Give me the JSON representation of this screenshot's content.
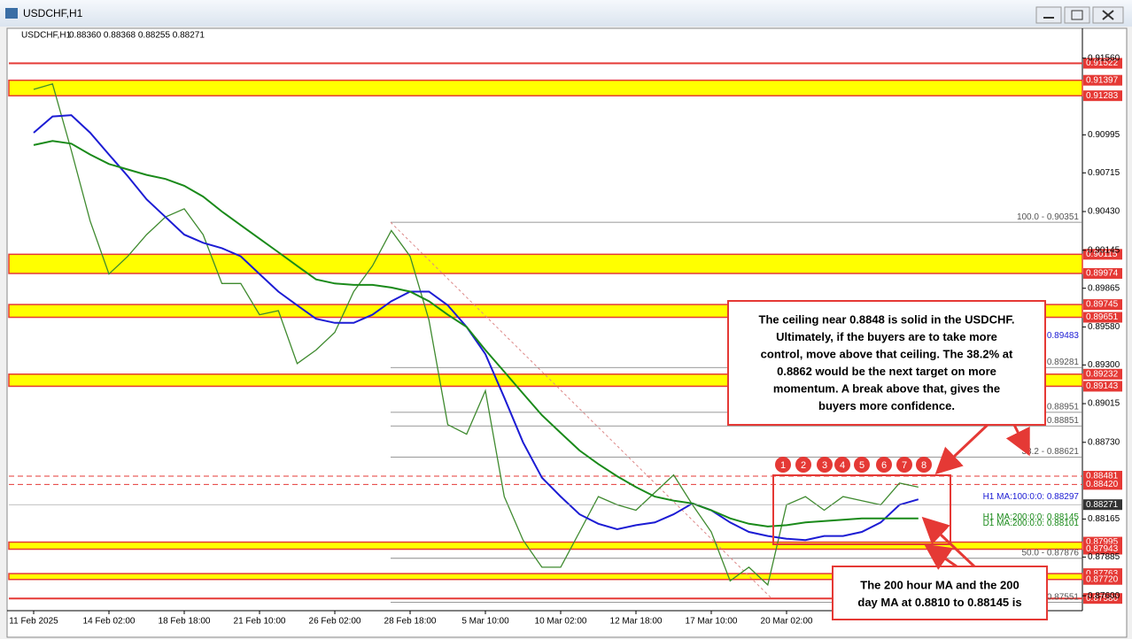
{
  "window_title": "USDCHF,H1",
  "chart_data": {
    "type": "line",
    "title": "USDCHF,H1",
    "subtitle": "0.88360 0.88368 0.88255 0.88271",
    "categories": [
      "11 Feb 2025",
      null,
      null,
      null,
      "14 Feb 02:00",
      null,
      null,
      null,
      "18 Feb 18:00",
      null,
      null,
      null,
      "21 Feb 10:00",
      null,
      null,
      null,
      "26 Feb 02:00",
      null,
      null,
      null,
      "28 Feb 18:00",
      null,
      null,
      null,
      "5 Mar 10:00",
      null,
      null,
      null,
      "10 Mar 02:00",
      null,
      null,
      null,
      "12 Mar 18:00",
      null,
      null,
      null,
      "17 Mar 10:00",
      null,
      null,
      null,
      "20 Mar 02:00",
      null,
      null,
      null,
      null,
      null,
      null,
      null
    ],
    "series": [
      {
        "name": "USDCHF",
        "color": "#3f8a2f",
        "values": [
          0.9133,
          0.9137,
          0.9088,
          0.9036,
          0.8997,
          0.901,
          0.9026,
          0.9039,
          0.9045,
          0.9026,
          0.899,
          0.899,
          0.8967,
          0.897,
          0.8931,
          0.8941,
          0.8954,
          0.8984,
          0.9003,
          0.9029,
          0.901,
          0.8963,
          0.8886,
          0.8879,
          0.8911,
          0.8833,
          0.8801,
          0.8781,
          0.8781,
          0.8807,
          0.8833,
          0.8827,
          0.8823,
          0.8836,
          0.8849,
          0.8827,
          0.8807,
          0.8771,
          0.8781,
          0.8768,
          0.8827,
          0.8833,
          0.8823,
          0.8833,
          0.883,
          0.8827,
          0.8843,
          0.884
        ]
      },
      {
        "name": "H1 MA:100:0:0:",
        "color": "#1c1cd4",
        "values": [
          0.9101,
          0.9113,
          0.9114,
          0.9101,
          0.9085,
          0.9069,
          0.9052,
          0.9039,
          0.9026,
          0.902,
          0.9016,
          0.901,
          0.8997,
          0.8984,
          0.8974,
          0.8964,
          0.8961,
          0.8961,
          0.8967,
          0.8977,
          0.8984,
          0.8984,
          0.8974,
          0.8958,
          0.8938,
          0.8906,
          0.8873,
          0.8847,
          0.8833,
          0.882,
          0.8813,
          0.8809,
          0.8812,
          0.8814,
          0.882,
          0.8828,
          0.8823,
          0.8814,
          0.8807,
          0.8804,
          0.8802,
          0.8801,
          0.8804,
          0.8804,
          0.8807,
          0.8814,
          0.8827,
          0.8831
        ]
      },
      {
        "name": "H1 MA:200:0:0:",
        "color": "#1a8a1a",
        "values": [
          0.9092,
          0.9095,
          0.9093,
          0.9085,
          0.9078,
          0.9074,
          0.907,
          0.9067,
          0.9062,
          0.9054,
          0.9043,
          0.9033,
          0.9023,
          0.9013,
          0.9003,
          0.8993,
          0.899,
          0.8989,
          0.8989,
          0.8987,
          0.8984,
          0.8977,
          0.8967,
          0.8958,
          0.8941,
          0.8925,
          0.8909,
          0.8893,
          0.888,
          0.8867,
          0.8857,
          0.8848,
          0.884,
          0.8833,
          0.883,
          0.8828,
          0.8823,
          0.8817,
          0.8813,
          0.8811,
          0.8812,
          0.8814,
          0.8815,
          0.8816,
          0.8817,
          0.8817,
          0.8817,
          0.8817
        ]
      }
    ],
    "ylim": [
      0.8749,
      0.9176
    ],
    "yticks": [
      {
        "value": 0.9156,
        "label": "0.91560"
      },
      0.90995,
      0.90715,
      {
        "value": 0.9043,
        "label": "0.90430"
      },
      0.90145,
      0.89865,
      {
        "value": 0.8958,
        "label": "0.89580"
      },
      {
        "value": 0.893,
        "label": "0.89300"
      },
      0.89015,
      {
        "value": 0.8873,
        "label": "0.88730"
      },
      0.88165,
      0.87885,
      {
        "value": 0.876,
        "label": "0.87600"
      }
    ],
    "current_price": 0.88271,
    "zones": [
      {
        "top": 0.91397,
        "bottom": 0.91283,
        "top_label": "0.91397",
        "bottom_label": "0.91283"
      },
      {
        "top": 0.90115,
        "bottom": 0.89974,
        "top_label": "0.90115",
        "bottom_label": "0.89974"
      },
      {
        "top": 0.89745,
        "bottom": 0.89651,
        "top_label": "0.89745",
        "bottom_label": "0.89651"
      },
      {
        "top": 0.89232,
        "bottom": 0.89143,
        "top_label": "0.89232",
        "bottom_label": "0.89143"
      },
      {
        "top": 0.87995,
        "bottom": 0.87943,
        "top_label": "0.87995",
        "bottom_label": "0.87943"
      },
      {
        "top": 0.87763,
        "bottom": 0.8772,
        "top_label": "0.87763",
        "bottom_label": "0.87720"
      }
    ],
    "lines": [
      {
        "value": 0.91522,
        "label": "0.91522",
        "dashed": false
      },
      {
        "value": 0.88481,
        "label": "0.88481",
        "dashed": true
      },
      {
        "value": 0.8842,
        "label": "0.88420",
        "dashed": true
      },
      {
        "value": 0.8758,
        "label": "0.87580",
        "dashed": false
      }
    ],
    "fib_levels": [
      {
        "value": 0.90351,
        "label": "100.0 - 0.90351"
      },
      {
        "value": 0.89281,
        "label": "0.89281"
      },
      {
        "value": 0.88951,
        "label": "0.88951"
      },
      {
        "value": 0.88851,
        "label": "0.88851"
      },
      {
        "value": 0.88621,
        "label": "38.2 - 0.88621"
      },
      {
        "value": 0.87876,
        "label": "50.0 - 0.87876"
      },
      {
        "value": 0.87551,
        "label": "0.87551"
      }
    ],
    "ma_labels": [
      {
        "value": 0.89483,
        "label": "0.89483",
        "color": "#1c1cd4"
      },
      {
        "value": 0.88297,
        "label": "H1 MA:100:0:0: 0.88297",
        "color": "#1c1cd4"
      },
      {
        "value": 0.88145,
        "label": "H1 MA:200:0:0: 0.88145",
        "color": "#1a8a1a"
      },
      {
        "value": 0.88101,
        "label": "D1 MA:200:0:0: 0.88101",
        "color": "#1a8a1a"
      }
    ],
    "swing_markers": [
      "1",
      "2",
      "3",
      "4",
      "5",
      "6",
      "7",
      "8"
    ],
    "annotations": [
      [
        "The ceiling near 0.8848 is solid in the USDCHF.",
        "Ultimately, if the buyers are to take more",
        "control, move above that ceiling.  The 38.2% at",
        "0.8862 would be the next target on more",
        "momentum. A break above that, gives the",
        "buyers more confidence."
      ],
      [
        "The 200 hour MA and the 200",
        "day MA at 0.8810 to 0.88145 is"
      ]
    ]
  }
}
